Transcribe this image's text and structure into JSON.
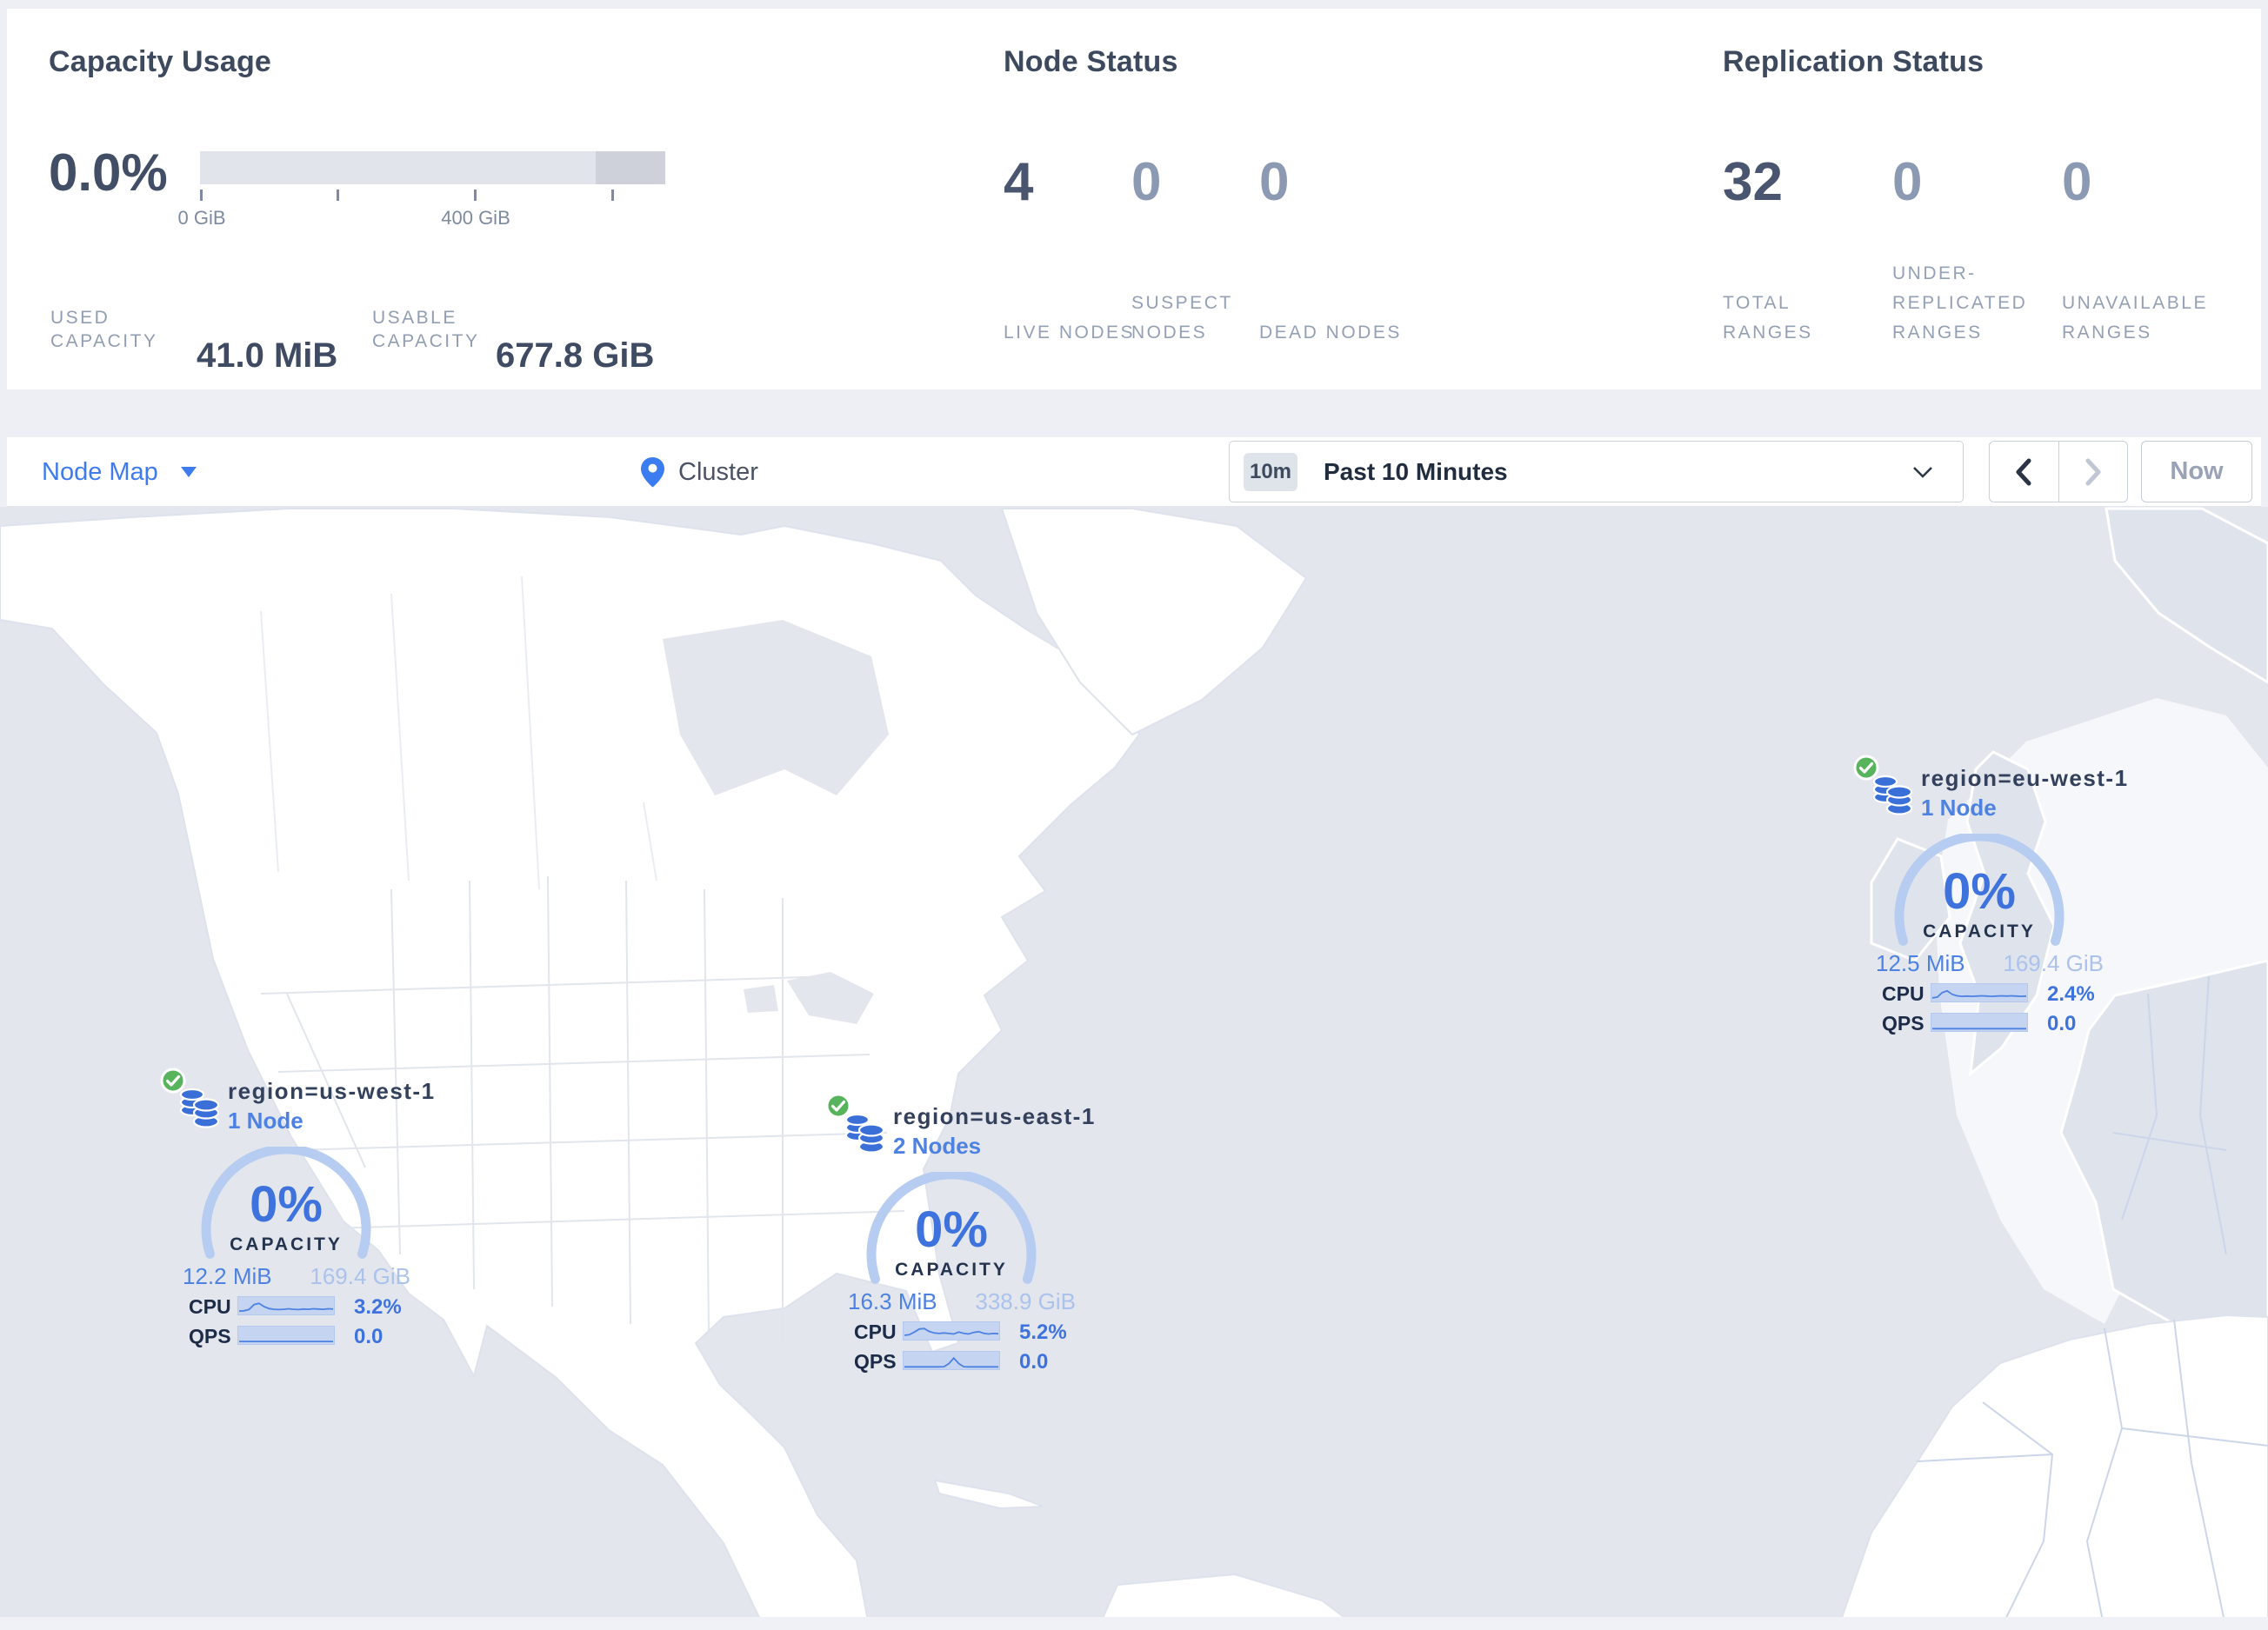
{
  "capacity_usage": {
    "title": "Capacity Usage",
    "percent": "0.0%",
    "ticks": [
      {
        "label": "0 GiB"
      },
      {
        "label": ""
      },
      {
        "label": "400 GiB"
      },
      {
        "label": ""
      }
    ],
    "used_label": "USED CAPACITY",
    "used_value": "41.0 MiB",
    "usable_label": "USABLE CAPACITY",
    "usable_value": "677.8 GiB"
  },
  "node_status": {
    "title": "Node Status",
    "stats": [
      {
        "value": "4",
        "label": "LIVE NODES"
      },
      {
        "value": "0",
        "label": "SUSPECT NODES"
      },
      {
        "value": "0",
        "label": "DEAD NODES"
      }
    ]
  },
  "replication_status": {
    "title": "Replication Status",
    "stats": [
      {
        "value": "32",
        "label": "TOTAL RANGES"
      },
      {
        "value": "0",
        "label": "UNDER-REPLICATED RANGES"
      },
      {
        "value": "0",
        "label": "UNAVAILABLE RANGES"
      }
    ]
  },
  "toolbar": {
    "view_selector": "Node Map",
    "breadcrumb": "Cluster",
    "time_badge": "10m",
    "time_range": "Past 10 Minutes",
    "now_label": "Now"
  },
  "map": {
    "markers": [
      {
        "region_label": "region=us-west-1",
        "nodes_label": "1 Node",
        "capacity_pct": "0%",
        "capacity_label": "CAPACITY",
        "used": "12.2 MiB",
        "total": "169.4 GiB",
        "cpu_label": "CPU",
        "cpu_value": "3.2%",
        "qps_label": "QPS",
        "qps_value": "0.0",
        "cpu_spark": [
          0.12,
          0.15,
          0.25,
          0.62,
          0.72,
          0.48,
          0.32,
          0.26,
          0.24,
          0.26,
          0.3,
          0.26,
          0.24,
          0.28,
          0.26,
          0.3,
          0.28,
          0.26,
          0.3,
          0.28
        ],
        "qps_spark": [
          0.06,
          0.06,
          0.06,
          0.06,
          0.06,
          0.06,
          0.06,
          0.06,
          0.06,
          0.06,
          0.06,
          0.06,
          0.06,
          0.06,
          0.06,
          0.06,
          0.06,
          0.06,
          0.06,
          0.06
        ]
      },
      {
        "region_label": "region=us-east-1",
        "nodes_label": "2 Nodes",
        "capacity_pct": "0%",
        "capacity_label": "CAPACITY",
        "used": "16.3 MiB",
        "total": "338.9 GiB",
        "cpu_label": "CPU",
        "cpu_value": "5.2%",
        "qps_label": "QPS",
        "qps_value": "0.0",
        "cpu_spark": [
          0.2,
          0.25,
          0.45,
          0.68,
          0.72,
          0.5,
          0.38,
          0.34,
          0.38,
          0.34,
          0.3,
          0.45,
          0.35,
          0.3,
          0.42,
          0.48,
          0.36,
          0.3,
          0.34,
          0.32
        ],
        "qps_spark": [
          0.05,
          0.05,
          0.05,
          0.05,
          0.05,
          0.05,
          0.05,
          0.05,
          0.06,
          0.3,
          0.72,
          0.3,
          0.06,
          0.05,
          0.05,
          0.05,
          0.05,
          0.05,
          0.05,
          0.05
        ]
      },
      {
        "region_label": "region=eu-west-1",
        "nodes_label": "1 Node",
        "capacity_pct": "0%",
        "capacity_label": "CAPACITY",
        "used": "12.5 MiB",
        "total": "169.4 GiB",
        "cpu_label": "CPU",
        "cpu_value": "2.4%",
        "qps_label": "QPS",
        "qps_value": "0.0",
        "cpu_spark": [
          0.15,
          0.2,
          0.55,
          0.68,
          0.42,
          0.3,
          0.26,
          0.28,
          0.26,
          0.28,
          0.3,
          0.28,
          0.26,
          0.28,
          0.3,
          0.28,
          0.3,
          0.28,
          0.26,
          0.28
        ],
        "qps_spark": [
          0.05,
          0.05,
          0.05,
          0.05,
          0.05,
          0.05,
          0.05,
          0.05,
          0.05,
          0.05,
          0.05,
          0.05,
          0.05,
          0.05,
          0.05,
          0.05,
          0.05,
          0.05,
          0.05,
          0.05
        ]
      }
    ]
  },
  "colors": {
    "accent_blue": "#3d7bef",
    "marker_blue": "#3e73de",
    "healthy_green": "#57b35c"
  }
}
